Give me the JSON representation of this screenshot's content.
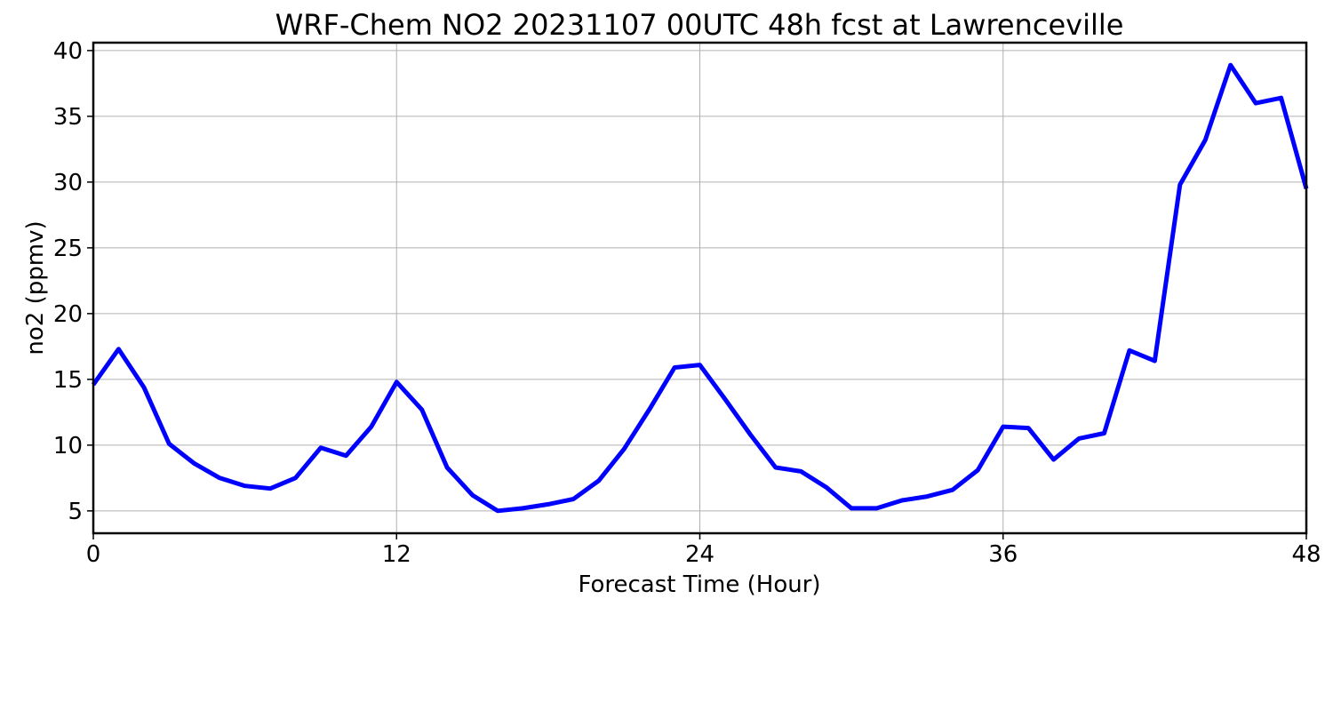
{
  "chart_data": {
    "type": "line",
    "title": "WRF-Chem NO2  20231107 00UTC 48h fcst at Lawrenceville",
    "xlabel": "Forecast Time (Hour)",
    "ylabel": "no2  (ppmv)",
    "xlim": [
      0,
      48
    ],
    "ylim": [
      3.3,
      40.6
    ],
    "xticks": [
      0,
      12,
      24,
      36,
      48
    ],
    "yticks": [
      5,
      10,
      15,
      20,
      25,
      30,
      35,
      40
    ],
    "grid": true,
    "series": [
      {
        "color": "#0000ff",
        "x": [
          0,
          1,
          2,
          3,
          4,
          5,
          6,
          7,
          8,
          9,
          10,
          11,
          12,
          13,
          14,
          15,
          16,
          17,
          18,
          19,
          20,
          21,
          22,
          23,
          24,
          25,
          26,
          27,
          28,
          29,
          30,
          31,
          32,
          33,
          34,
          35,
          36,
          37,
          38,
          39,
          40,
          41,
          42,
          43,
          44,
          45,
          46,
          47,
          48
        ],
        "values": [
          14.6,
          17.3,
          14.4,
          10.1,
          8.6,
          7.5,
          6.9,
          6.7,
          7.5,
          9.8,
          9.2,
          11.4,
          14.8,
          12.7,
          8.3,
          6.2,
          5.0,
          5.2,
          5.5,
          5.9,
          7.3,
          9.7,
          12.7,
          15.9,
          16.1,
          13.5,
          10.8,
          8.3,
          8.0,
          6.8,
          5.2,
          5.2,
          5.8,
          6.1,
          6.6,
          8.1,
          11.4,
          11.3,
          8.9,
          10.5,
          10.9,
          17.2,
          16.4,
          29.8,
          33.2,
          38.9,
          36.0,
          36.4,
          29.5
        ]
      }
    ]
  }
}
